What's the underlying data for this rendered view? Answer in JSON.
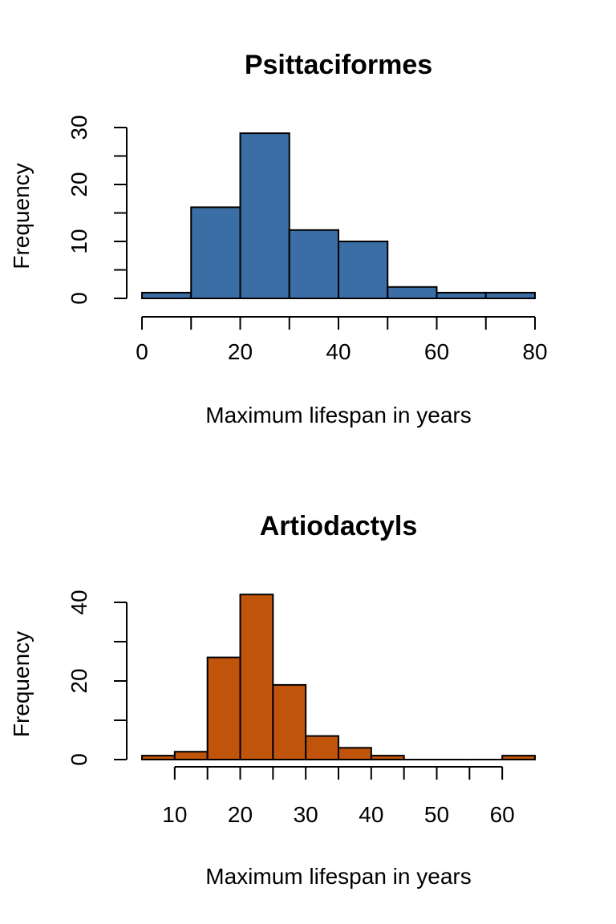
{
  "chart_data": [
    {
      "type": "bar",
      "title": "Psittaciformes",
      "xlabel": "Maximum lifespan in years",
      "ylabel": "Frequency",
      "bin_edges": [
        0,
        10,
        20,
        30,
        40,
        50,
        60,
        70,
        80
      ],
      "values": [
        1,
        16,
        29,
        12,
        10,
        2,
        1,
        1
      ],
      "xlim": [
        0,
        80
      ],
      "ylim": [
        0,
        30
      ],
      "x_ticks": [
        0,
        20,
        40,
        60,
        80
      ],
      "y_ticks": [
        0,
        10,
        20,
        30
      ],
      "grid": false,
      "color": "#3b6ea5"
    },
    {
      "type": "bar",
      "title": "Artiodactyls",
      "xlabel": "Maximum lifespan in years",
      "ylabel": "Frequency",
      "bin_edges": [
        5,
        10,
        15,
        20,
        25,
        30,
        35,
        40,
        45,
        50,
        55,
        60,
        65
      ],
      "values": [
        1,
        2,
        26,
        42,
        19,
        6,
        3,
        1,
        0,
        0,
        0,
        1
      ],
      "xlim": [
        5,
        65
      ],
      "ylim": [
        0,
        40
      ],
      "x_ticks": [
        10,
        20,
        30,
        40,
        50,
        60
      ],
      "y_ticks": [
        0,
        20,
        40
      ],
      "grid": false,
      "color": "#c0540a"
    }
  ]
}
